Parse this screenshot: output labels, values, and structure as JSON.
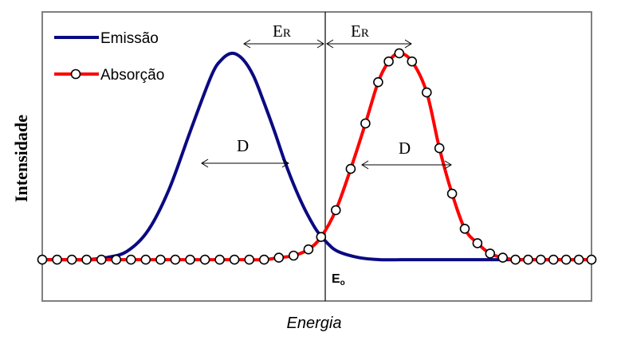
{
  "chart_data": {
    "type": "line",
    "xlabel": "Energia",
    "ylabel": "Intensidade",
    "xlim": [
      -1.3,
      1.3
    ],
    "ylim": [
      -0.2,
      1.2
    ],
    "grid": false,
    "legend_position": "top-left",
    "series": [
      {
        "name": "Emissão",
        "color": "#0a0a82",
        "marker": "none",
        "x": [
          -1.3,
          -1.2,
          -1.1,
          -1.0,
          -0.9,
          -0.8,
          -0.7,
          -0.6,
          -0.5,
          -0.45,
          -0.4,
          -0.35,
          -0.3,
          -0.25,
          -0.2,
          -0.15,
          -0.1,
          -0.05,
          0.0,
          0.05,
          0.1,
          0.2,
          0.3,
          0.4,
          0.5,
          0.6,
          0.7,
          0.8,
          0.9,
          1.0,
          1.1,
          1.2,
          1.3
        ],
        "y": [
          0.0,
          0.0,
          0.0,
          0.01,
          0.04,
          0.14,
          0.34,
          0.62,
          0.89,
          0.97,
          1.0,
          0.97,
          0.89,
          0.76,
          0.62,
          0.47,
          0.34,
          0.23,
          0.14,
          0.08,
          0.04,
          0.01,
          0.0,
          0.0,
          0.0,
          0.0,
          0.0,
          0.0,
          0.0,
          0.0,
          0.0,
          0.0,
          0.0
        ]
      },
      {
        "name": "Absorção",
        "color": "#ff0000",
        "marker": "circle",
        "x": [
          -1.3,
          -1.23,
          -1.16,
          -1.09,
          -1.02,
          -0.95,
          -0.88,
          -0.81,
          -0.74,
          -0.67,
          -0.6,
          -0.53,
          -0.46,
          -0.39,
          -0.32,
          -0.25,
          -0.18,
          -0.11,
          -0.04,
          0.02,
          0.09,
          0.16,
          0.23,
          0.29,
          0.34,
          0.39,
          0.45,
          0.52,
          0.58,
          0.64,
          0.7,
          0.76,
          0.82,
          0.88,
          0.94,
          1.0,
          1.06,
          1.12,
          1.18,
          1.24,
          1.3
        ],
        "y": [
          0.0,
          0.0,
          0.0,
          0.0,
          0.0,
          0.0,
          0.0,
          0.0,
          0.0,
          0.0,
          0.0,
          0.0,
          0.0,
          0.0,
          0.0,
          0.0,
          0.01,
          0.02,
          0.05,
          0.11,
          0.24,
          0.44,
          0.66,
          0.86,
          0.96,
          1.0,
          0.96,
          0.81,
          0.54,
          0.32,
          0.15,
          0.08,
          0.03,
          0.01,
          0.0,
          0.0,
          0.0,
          0.0,
          0.0,
          0.0,
          0.0
        ]
      }
    ],
    "annotations": {
      "e_r_left": "E",
      "e_r_right": "E",
      "e_r_sub": "R",
      "d_left": "D",
      "d_right": "D",
      "e0": "E",
      "e0_sub": "o"
    }
  }
}
